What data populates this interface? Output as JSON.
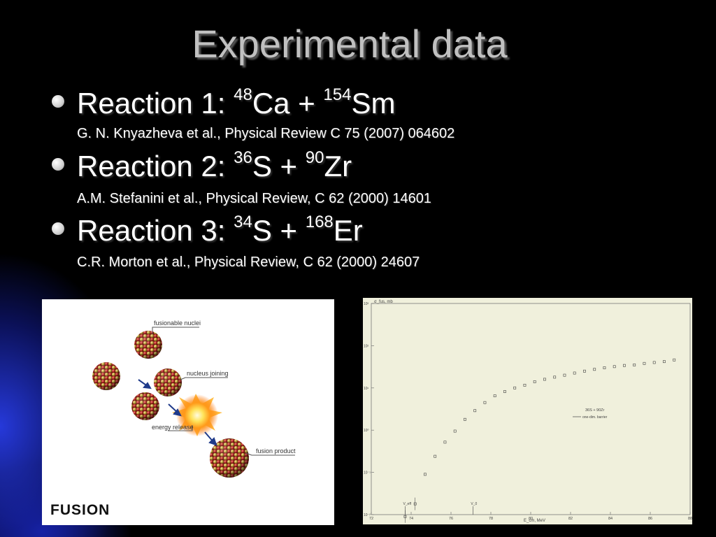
{
  "slide": {
    "title": "Experimental data",
    "bullets": [
      {
        "prefix": "Reaction 1: ",
        "a_mass": "48",
        "a_el": "Ca",
        "op": " + ",
        "b_mass": "154",
        "b_el": "Sm",
        "ref": "G. N. Knyazheva et al., Physical Review C 75 (2007) 064602"
      },
      {
        "prefix": "Reaction 2: ",
        "a_mass": "36",
        "a_el": "S",
        "op": " + ",
        "b_mass": "90",
        "b_el": "Zr",
        "ref": "A.M. Stefanini et al., Physical Review, C 62 (2000) 14601"
      },
      {
        "prefix": "Reaction 3: ",
        "a_mass": "34",
        "a_el": "S",
        "op": " + ",
        "b_mass": "168",
        "b_el": "Er",
        "ref": "C.R. Morton et al., Physical Review, C 62 (2000) 24607"
      }
    ]
  },
  "fusion_figure": {
    "labels": {
      "fusionable": "fusionable nuclei",
      "joining": "nucleus joining",
      "energy": "energy release",
      "product": "fusion product"
    },
    "caption": "FUSION"
  },
  "chart_data": {
    "type": "scatter",
    "ylabel": "σ_fus, mb",
    "xlabel": "E_cm, MeV",
    "xlim": [
      72,
      88
    ],
    "ylim_log10": [
      -2,
      3
    ],
    "x_ticks": [
      "72",
      "74",
      "76",
      "78",
      "80",
      "82",
      "84",
      "86",
      "88"
    ],
    "y_ticks": [
      "10⁻²",
      "10⁻¹",
      "10⁰",
      "10¹",
      "10²",
      "10³"
    ],
    "legend_title": "36S + 90Zr",
    "legend_entry": "one-dim. barrier",
    "legend_placement": "right-middle",
    "markers": [
      "V_eff",
      "V_0"
    ],
    "marker_x": [
      73.7,
      77.1
    ],
    "x": [
      73.7,
      74.2,
      74.7,
      75.2,
      75.7,
      76.2,
      76.7,
      77.2,
      77.7,
      78.2,
      78.7,
      79.2,
      79.7,
      80.2,
      80.7,
      81.2,
      81.7,
      82.2,
      82.7,
      83.2,
      83.7,
      84.2,
      84.7,
      85.2,
      85.7,
      86.2,
      86.7,
      87.2
    ],
    "y": [
      0.009,
      0.018,
      0.09,
      0.24,
      0.52,
      0.95,
      1.8,
      2.9,
      4.5,
      6.5,
      8.2,
      10.0,
      11.6,
      14.0,
      16.0,
      18.0,
      20.0,
      22.5,
      25.0,
      27.5,
      30.0,
      32.0,
      34.0,
      35.0,
      38.0,
      40.0,
      42.0,
      46.0
    ]
  }
}
